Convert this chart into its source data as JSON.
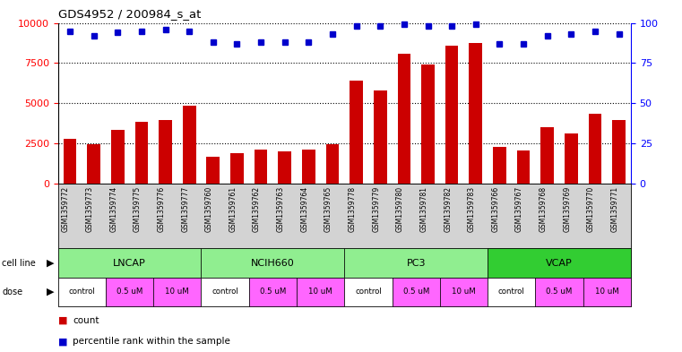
{
  "title": "GDS4952 / 200984_s_at",
  "samples": [
    "GSM1359772",
    "GSM1359773",
    "GSM1359774",
    "GSM1359775",
    "GSM1359776",
    "GSM1359777",
    "GSM1359760",
    "GSM1359761",
    "GSM1359762",
    "GSM1359763",
    "GSM1359764",
    "GSM1359765",
    "GSM1359778",
    "GSM1359779",
    "GSM1359780",
    "GSM1359781",
    "GSM1359782",
    "GSM1359783",
    "GSM1359766",
    "GSM1359767",
    "GSM1359768",
    "GSM1359769",
    "GSM1359770",
    "GSM1359771"
  ],
  "counts": [
    2750,
    2450,
    3350,
    3850,
    3950,
    4850,
    1650,
    1900,
    2100,
    2000,
    2100,
    2450,
    6400,
    5800,
    8100,
    7400,
    8600,
    8750,
    2300,
    2050,
    3500,
    3100,
    4350,
    3950
  ],
  "percentile_ranks": [
    95,
    92,
    94,
    95,
    96,
    95,
    88,
    87,
    88,
    88,
    88,
    93,
    98,
    98,
    99,
    98,
    98,
    99,
    87,
    87,
    92,
    93,
    95,
    93
  ],
  "cell_lines": [
    {
      "name": "LNCAP",
      "start": 0,
      "end": 6,
      "color": "#90EE90"
    },
    {
      "name": "NCIH660",
      "start": 6,
      "end": 12,
      "color": "#90EE90"
    },
    {
      "name": "PC3",
      "start": 12,
      "end": 18,
      "color": "#90EE90"
    },
    {
      "name": "VCAP",
      "start": 18,
      "end": 24,
      "color": "#32CD32"
    }
  ],
  "dose_defs": [
    {
      "label": "control",
      "start": 0,
      "end": 2,
      "color": "#FFFFFF"
    },
    {
      "label": "0.5 uM",
      "start": 2,
      "end": 4,
      "color": "#FF66FF"
    },
    {
      "label": "10 uM",
      "start": 4,
      "end": 6,
      "color": "#FF66FF"
    },
    {
      "label": "control",
      "start": 6,
      "end": 8,
      "color": "#FFFFFF"
    },
    {
      "label": "0.5 uM",
      "start": 8,
      "end": 10,
      "color": "#FF66FF"
    },
    {
      "label": "10 uM",
      "start": 10,
      "end": 12,
      "color": "#FF66FF"
    },
    {
      "label": "control",
      "start": 12,
      "end": 14,
      "color": "#FFFFFF"
    },
    {
      "label": "0.5 uM",
      "start": 14,
      "end": 16,
      "color": "#FF66FF"
    },
    {
      "label": "10 uM",
      "start": 16,
      "end": 18,
      "color": "#FF66FF"
    },
    {
      "label": "control",
      "start": 18,
      "end": 20,
      "color": "#FFFFFF"
    },
    {
      "label": "0.5 uM",
      "start": 20,
      "end": 22,
      "color": "#FF66FF"
    },
    {
      "label": "10 uM",
      "start": 22,
      "end": 24,
      "color": "#FF66FF"
    }
  ],
  "bar_color": "#CC0000",
  "dot_color": "#0000CC",
  "ylim_left": [
    0,
    10000
  ],
  "ylim_right": [
    0,
    100
  ],
  "yticks_left": [
    0,
    2500,
    5000,
    7500,
    10000
  ],
  "yticks_right": [
    0,
    25,
    50,
    75,
    100
  ],
  "bg_color": "#FFFFFF",
  "grey_bg": "#D3D3D3",
  "cell_line_colors": {
    "LNCAP": "#90EE90",
    "NCIH660": "#90EE90",
    "PC3": "#90EE90",
    "VCAP": "#32CD32"
  }
}
